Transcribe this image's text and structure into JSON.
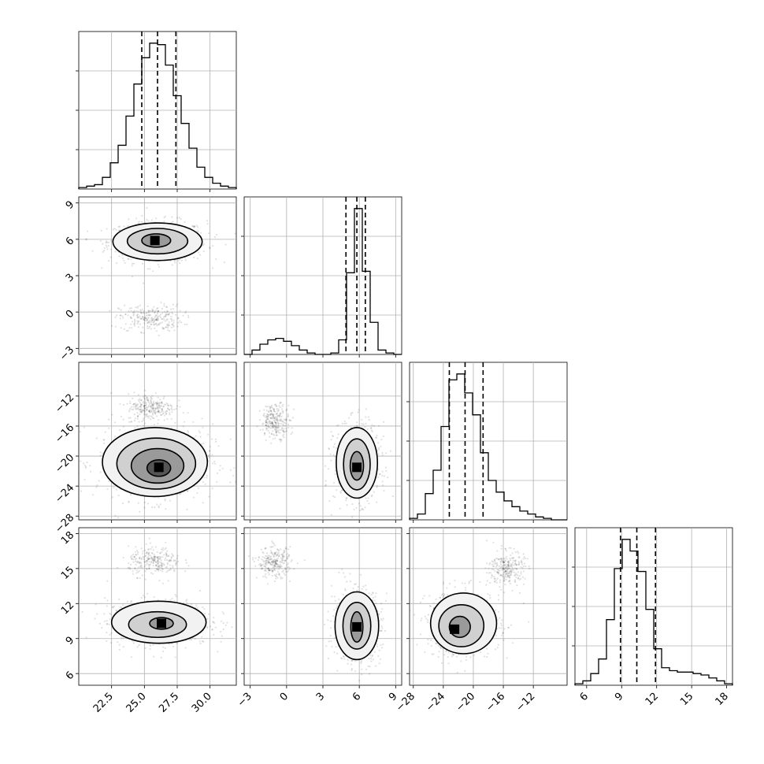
{
  "chart_data": {
    "type": "corner",
    "parameters": [
      {
        "label": "",
        "range": [
          20.0,
          32.0
        ],
        "ticks": [
          22.5,
          25.0,
          27.5,
          30.0
        ],
        "tick_labels": [
          "22.5",
          "25.0",
          "27.5",
          "30.0"
        ],
        "mean": 26.0,
        "sd": 1.5
      },
      {
        "label": "",
        "range": [
          -3.5,
          9.5
        ],
        "ticks": [
          -3,
          0,
          3,
          6,
          9
        ],
        "tick_labels": [
          "−3",
          "0",
          "3",
          "6",
          "9"
        ],
        "mean": 5.8,
        "sd": 0.55
      },
      {
        "label": "",
        "range": [
          -28.5,
          -7.5
        ],
        "ticks": [
          -28,
          -24,
          -20,
          -16,
          -12
        ],
        "tick_labels": [
          "−28",
          "−24",
          "−20",
          "−16",
          "−12"
        ],
        "mean": -21.0,
        "sd": 2.0
      },
      {
        "label": "",
        "range": [
          5.0,
          18.5
        ],
        "ticks": [
          6,
          9,
          12,
          15,
          18
        ],
        "tick_labels": [
          "6",
          "9",
          "12",
          "15",
          "18"
        ],
        "mean": 10.3,
        "sd": 1.2
      }
    ],
    "histograms": [
      {
        "param": 0,
        "bin_edges": [
          20.0,
          20.6,
          21.2,
          21.8,
          22.4,
          23.0,
          23.6,
          24.2,
          24.8,
          25.4,
          26.0,
          26.6,
          27.2,
          27.8,
          28.4,
          29.0,
          29.6,
          30.2,
          30.8,
          31.4,
          32.0
        ],
        "counts": [
          1,
          2,
          3,
          8,
          18,
          30,
          50,
          72,
          90,
          100,
          99,
          85,
          64,
          45,
          28,
          15,
          8,
          4,
          2,
          1
        ],
        "quantiles": [
          24.8,
          26.0,
          27.4
        ]
      },
      {
        "param": 1,
        "bin_edges": [
          -3.5,
          -2.85,
          -2.2,
          -1.55,
          -0.9,
          -0.25,
          0.4,
          1.05,
          1.7,
          2.35,
          3.0,
          3.65,
          4.3,
          4.95,
          5.6,
          6.25,
          6.9,
          7.55,
          8.2,
          8.85,
          9.5
        ],
        "counts": [
          0,
          3,
          7,
          10,
          11,
          9,
          6,
          3,
          1,
          0,
          0,
          1,
          10,
          56,
          100,
          57,
          22,
          3,
          1,
          0
        ],
        "quantiles": [
          4.9,
          5.8,
          6.5
        ]
      },
      {
        "param": 2,
        "bin_edges": [
          -28.5,
          -27.45,
          -26.4,
          -25.35,
          -24.3,
          -23.25,
          -22.2,
          -21.15,
          -20.1,
          -19.05,
          -18.0,
          -16.95,
          -15.9,
          -14.85,
          -13.8,
          -12.75,
          -11.7,
          -10.65,
          -9.6,
          -8.55,
          -7.5
        ],
        "counts": [
          1,
          4,
          18,
          34,
          64,
          96,
          100,
          87,
          72,
          46,
          27,
          19,
          13,
          9,
          6,
          4,
          2,
          1,
          0,
          0
        ],
        "quantiles": [
          -23.2,
          -21.1,
          -18.7
        ]
      },
      {
        "param": 3,
        "bin_edges": [
          5.0,
          5.675,
          6.35,
          7.025,
          7.7,
          8.375,
          9.05,
          9.725,
          10.4,
          11.075,
          11.75,
          12.425,
          13.1,
          13.775,
          14.45,
          15.125,
          15.8,
          16.475,
          17.15,
          17.825,
          18.5
        ],
        "counts": [
          1,
          3,
          8,
          18,
          45,
          80,
          100,
          92,
          78,
          52,
          25,
          12,
          10,
          9,
          9,
          8,
          7,
          5,
          3,
          1
        ],
        "quantiles": [
          8.9,
          10.3,
          11.9
        ]
      }
    ],
    "joint_panels": [
      {
        "x_param": 0,
        "y_param": 1,
        "peak": [
          25.8,
          5.9
        ],
        "contour_levels": [
          {
            "cx": 25.9,
            "cy": 5.9,
            "rx": 1.1,
            "ry": 0.55
          },
          {
            "cx": 26.0,
            "cy": 5.85,
            "rx": 2.3,
            "ry": 1.05
          },
          {
            "cx": 26.0,
            "cy": 5.8,
            "rx": 3.4,
            "ry": 1.55
          }
        ],
        "secondary_cloud": {
          "cx": 25.5,
          "cy": -0.5,
          "rx": 2.4,
          "ry": 1.1
        }
      },
      {
        "x_param": 0,
        "y_param": 2,
        "peak": [
          26.1,
          -21.5
        ],
        "contour_levels": [
          {
            "cx": 26.1,
            "cy": -21.6,
            "rx": 0.9,
            "ry": 1.1
          },
          {
            "cx": 26.0,
            "cy": -21.3,
            "rx": 2.0,
            "ry": 2.3
          },
          {
            "cx": 25.9,
            "cy": -21.0,
            "rx": 3.0,
            "ry": 3.4
          },
          {
            "cx": 25.8,
            "cy": -20.8,
            "rx": 4.0,
            "ry": 4.6
          }
        ],
        "secondary_cloud": {
          "cx": 25.5,
          "cy": -13.5,
          "rx": 1.8,
          "ry": 1.8
        }
      },
      {
        "x_param": 0,
        "y_param": 3,
        "peak": [
          26.3,
          10.3
        ],
        "contour_levels": [
          {
            "cx": 26.3,
            "cy": 10.3,
            "rx": 0.9,
            "ry": 0.5
          },
          {
            "cx": 26.0,
            "cy": 10.2,
            "rx": 2.2,
            "ry": 1.1
          },
          {
            "cx": 26.1,
            "cy": 10.4,
            "rx": 3.6,
            "ry": 1.8
          }
        ],
        "secondary_cloud": {
          "cx": 25.8,
          "cy": 15.6,
          "rx": 2.0,
          "ry": 1.2
        }
      },
      {
        "x_param": 1,
        "y_param": 2,
        "peak": [
          5.8,
          -21.5
        ],
        "contour_levels": [
          {
            "cx": 5.8,
            "cy": -21.3,
            "rx": 0.55,
            "ry": 1.9
          },
          {
            "cx": 5.8,
            "cy": -21.1,
            "rx": 1.1,
            "ry": 3.4
          },
          {
            "cx": 5.8,
            "cy": -20.9,
            "rx": 1.7,
            "ry": 4.7
          }
        ],
        "secondary_cloud": {
          "cx": -0.9,
          "cy": -15.3,
          "rx": 1.2,
          "ry": 2.2
        }
      },
      {
        "x_param": 1,
        "y_param": 3,
        "peak": [
          5.8,
          10.0
        ],
        "contour_levels": [
          {
            "cx": 5.8,
            "cy": 10.0,
            "rx": 0.5,
            "ry": 1.3
          },
          {
            "cx": 5.8,
            "cy": 10.1,
            "rx": 1.15,
            "ry": 2.0
          },
          {
            "cx": 5.8,
            "cy": 10.1,
            "rx": 1.8,
            "ry": 2.9
          }
        ],
        "secondary_cloud": {
          "cx": -1.0,
          "cy": 15.5,
          "rx": 1.4,
          "ry": 1.3
        }
      },
      {
        "x_param": 2,
        "y_param": 3,
        "peak": [
          -22.5,
          9.8
        ],
        "contour_levels": [
          {
            "cx": -21.8,
            "cy": 10.0,
            "rx": 1.4,
            "ry": 0.9
          },
          {
            "cx": -21.6,
            "cy": 10.1,
            "rx": 3.0,
            "ry": 1.8
          },
          {
            "cx": -21.3,
            "cy": 10.3,
            "rx": 4.4,
            "ry": 2.6
          }
        ],
        "secondary_cloud": {
          "cx": -15.5,
          "cy": 15.0,
          "rx": 2.3,
          "ry": 1.5
        }
      }
    ],
    "grid": true,
    "title": "",
    "legend": "none"
  }
}
